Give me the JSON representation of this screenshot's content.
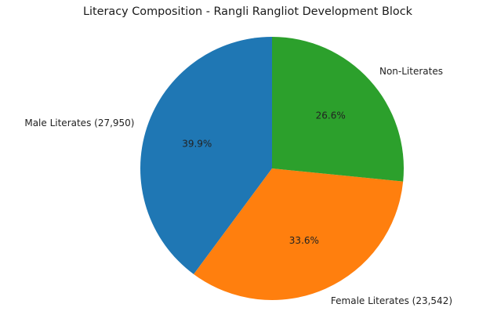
{
  "chart_data": {
    "type": "pie",
    "title": "Literacy Composition - Rangli Rangliot Development Block",
    "slices": [
      {
        "label": "Male Literates (27,950)",
        "category": "Male Literates",
        "value": 27950,
        "percent_label": "39.9%",
        "percent": 39.9,
        "color": "#1f77b4"
      },
      {
        "label": "Female Literates (23,542)",
        "category": "Female Literates",
        "value": 23542,
        "percent_label": "33.6%",
        "percent": 33.6,
        "color": "#ff7f0e"
      },
      {
        "label": "Non-Literates",
        "category": "Non-Literates",
        "value": null,
        "percent_label": "26.6%",
        "percent": 26.6,
        "color": "#2ca02c"
      }
    ],
    "start_angle": 90,
    "direction": "counterclockwise",
    "legend": "none",
    "xlabel": "",
    "ylabel": ""
  }
}
